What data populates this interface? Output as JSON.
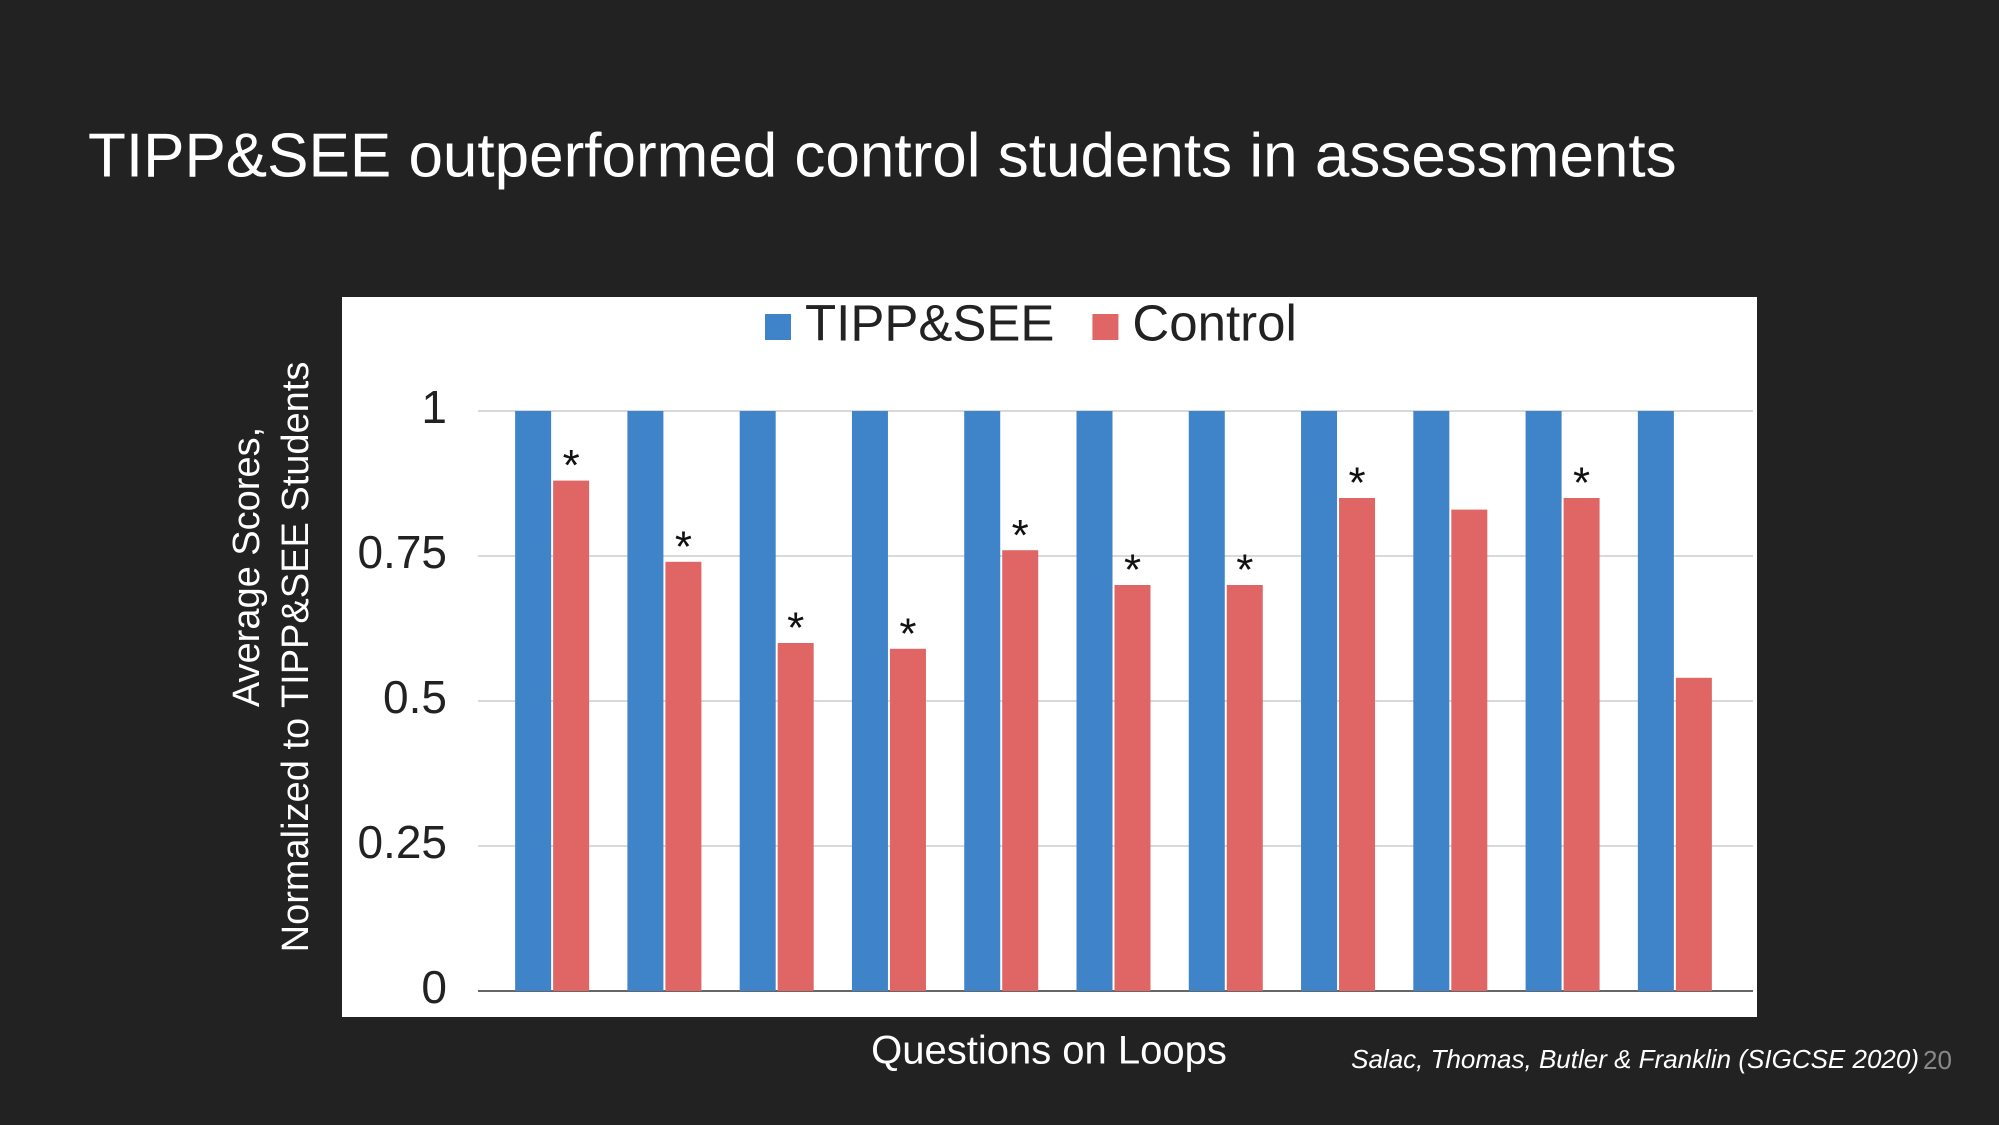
{
  "title": "TIPP&SEE outperformed control students in assessments",
  "citation": "Salac, Thomas, Butler & Franklin (SIGCSE 2020)",
  "page_number": "20",
  "chart_data": {
    "type": "bar",
    "x_label": "Questions on Loops",
    "y_label": [
      "Average Scores,",
      "Normalized to TIPP&SEE Students"
    ],
    "categories": [
      null,
      null,
      null,
      null,
      null,
      null,
      null,
      null,
      null,
      null,
      null
    ],
    "series": [
      {
        "name": "TIPP&SEE",
        "color": "#3f84c8",
        "values": [
          1,
          1,
          1,
          1,
          1,
          1,
          1,
          1,
          1,
          1,
          1
        ]
      },
      {
        "name": "Control",
        "color": "#e06666",
        "values": [
          0.88,
          0.74,
          0.6,
          0.59,
          0.76,
          0.7,
          0.7,
          0.85,
          0.83,
          0.85,
          0.54
        ],
        "significance_marks": [
          "*",
          "*",
          "*",
          "*",
          "*",
          "*",
          "*",
          "*",
          null,
          "*",
          null
        ]
      }
    ],
    "ylim": [
      0,
      1
    ],
    "yticks": [
      0,
      0.25,
      0.5,
      0.75,
      1
    ],
    "grid": true,
    "legend": "top"
  }
}
